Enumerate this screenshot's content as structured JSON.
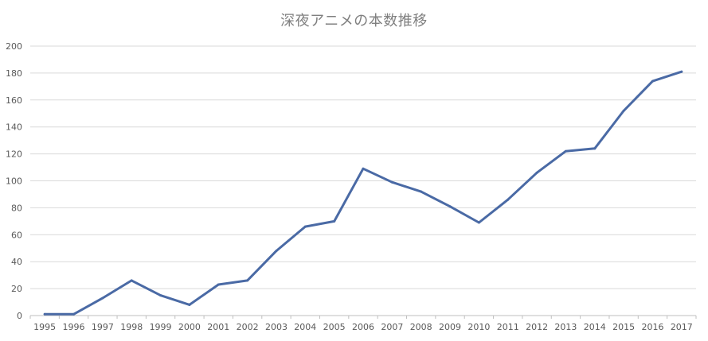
{
  "chart_data": {
    "type": "line",
    "title": "深夜アニメの本数推移",
    "xlabel": "",
    "ylabel": "",
    "categories": [
      "1995",
      "1996",
      "1997",
      "1998",
      "1999",
      "2000",
      "2001",
      "2002",
      "2003",
      "2004",
      "2005",
      "2006",
      "2007",
      "2008",
      "2009",
      "2010",
      "2011",
      "2012",
      "2013",
      "2014",
      "2015",
      "2016",
      "2017"
    ],
    "series": [
      {
        "values": [
          1,
          1,
          13,
          26,
          15,
          8,
          23,
          26,
          48,
          66,
          70,
          109,
          99,
          92,
          81,
          69,
          86,
          106,
          122,
          124,
          152,
          174,
          181
        ]
      }
    ],
    "ylim": [
      0,
      200
    ],
    "yticks": [
      0,
      20,
      40,
      60,
      80,
      100,
      120,
      140,
      160,
      180,
      200
    ],
    "grid": true,
    "legend": "none",
    "line_color": "#4a6aa5",
    "grid_color": "#d9d9d9",
    "axis_color": "#bfbfbf"
  }
}
